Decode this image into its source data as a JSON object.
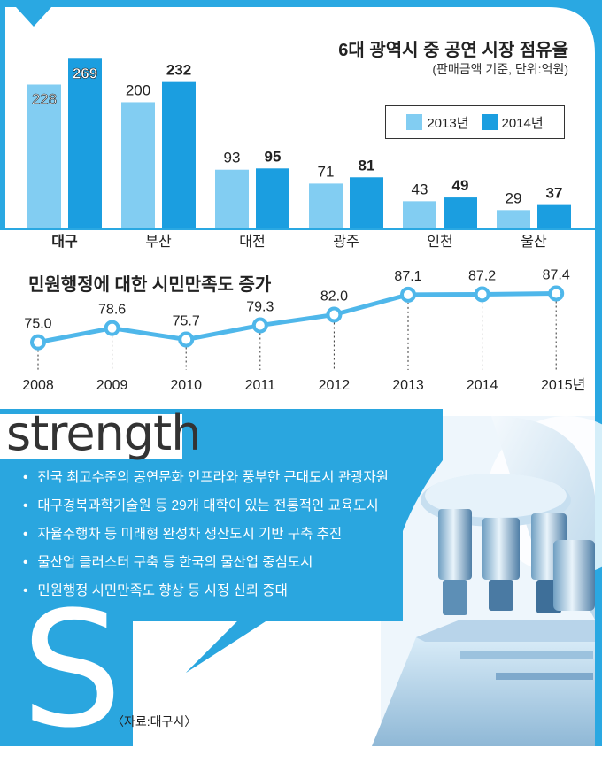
{
  "colors": {
    "frame": "#2aa8e2",
    "series_2013": "#82cdf2",
    "series_2014": "#1b9ee0",
    "panel": "#2aa6df",
    "line": "#4fb7ea"
  },
  "chart_data": [
    {
      "type": "bar",
      "title": "6대 광역시 중 공연 시장 점유율",
      "subtitle": "(판매금액 기준, 단위:억원)",
      "categories": [
        "대구",
        "부산",
        "대전",
        "광주",
        "인천",
        "울산"
      ],
      "series": [
        {
          "name": "2013년",
          "values": [
            228,
            200,
            93,
            71,
            43,
            29
          ]
        },
        {
          "name": "2014년",
          "values": [
            269,
            232,
            95,
            81,
            49,
            37
          ]
        }
      ],
      "ylim": [
        0,
        275
      ],
      "legend_position": "top-right",
      "grid": false
    },
    {
      "type": "line",
      "title": "민원행정에 대한 시민만족도 증가",
      "x": [
        "2008",
        "2009",
        "2010",
        "2011",
        "2012",
        "2013",
        "2014",
        "2015년"
      ],
      "values": [
        75.0,
        78.6,
        75.7,
        79.3,
        82.0,
        87.1,
        87.2,
        87.4
      ],
      "labels": [
        "75.0",
        "78.6",
        "75.7",
        "79.3",
        "82.0",
        "87.1",
        "87.2",
        "87.4"
      ],
      "ylim": [
        72,
        90
      ],
      "grid": false
    }
  ],
  "strength": {
    "heading": "strength",
    "points": [
      "전국 최고수준의 공연문화 인프라와 풍부한 근대도시 관광자원",
      "대구경북과학기술원 등 29개 대학이 있는 전통적인 교육도시",
      "자율주행차 등 미래형 완성차 생산도시 기반 구축 추진",
      "물산업 클러스터 구축 등 한국의 물산업 중심도시",
      "민원행정 시민만족도 향상 등 시정 신뢰 증대"
    ],
    "big_letter": "S",
    "bullet": "•"
  },
  "source": "〈자료:대구시〉"
}
